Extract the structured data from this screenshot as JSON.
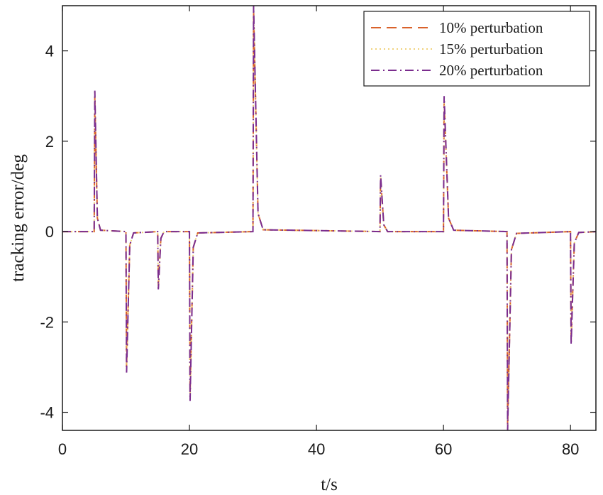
{
  "chart_data": {
    "type": "line",
    "xlabel": "t/s",
    "ylabel": "tracking error/deg",
    "xlim": [
      0,
      84
    ],
    "ylim": [
      -4.4,
      5.0
    ],
    "xticks": [
      0,
      20,
      40,
      60,
      80
    ],
    "yticks": [
      -4,
      -2,
      0,
      2,
      4
    ],
    "xtick_labels": [
      "0",
      "20",
      "40",
      "60",
      "80"
    ],
    "ytick_labels": [
      "-4",
      "-2",
      "0",
      "2",
      "4"
    ],
    "grid": false,
    "legend_position": "top-right",
    "series": [
      {
        "name": "10% perturbation",
        "color": "#d9622b",
        "dash": "dashed",
        "points": [
          [
            0,
            0
          ],
          [
            5,
            0
          ],
          [
            5.1,
            3.0
          ],
          [
            5.5,
            0.3
          ],
          [
            6,
            0.03
          ],
          [
            10,
            0
          ],
          [
            10.1,
            -3.0
          ],
          [
            10.6,
            -0.3
          ],
          [
            11.2,
            -0.03
          ],
          [
            15,
            0
          ],
          [
            15.1,
            -1.2
          ],
          [
            15.5,
            -0.15
          ],
          [
            16,
            0
          ],
          [
            20,
            0
          ],
          [
            20.1,
            -3.6
          ],
          [
            20.6,
            -0.35
          ],
          [
            21.3,
            -0.03
          ],
          [
            30,
            0
          ],
          [
            30.1,
            4.9
          ],
          [
            30.8,
            0.4
          ],
          [
            31.6,
            0.04
          ],
          [
            50,
            0
          ],
          [
            50.1,
            1.2
          ],
          [
            50.6,
            0.15
          ],
          [
            51.2,
            0
          ],
          [
            60,
            0
          ],
          [
            60.1,
            2.9
          ],
          [
            60.8,
            0.3
          ],
          [
            61.6,
            0.03
          ],
          [
            70,
            0
          ],
          [
            70.1,
            -4.3
          ],
          [
            70.7,
            -0.4
          ],
          [
            71.5,
            -0.04
          ],
          [
            80,
            0
          ],
          [
            80.1,
            -2.4
          ],
          [
            80.6,
            -0.25
          ],
          [
            81.3,
            -0.02
          ],
          [
            84,
            0
          ]
        ]
      },
      {
        "name": "15% perturbation",
        "color": "#f0d27a",
        "dash": "dotted",
        "points": [
          [
            0,
            0
          ],
          [
            5,
            0
          ],
          [
            5.1,
            3.08
          ],
          [
            5.5,
            0.3
          ],
          [
            6,
            0.03
          ],
          [
            10,
            0
          ],
          [
            10.1,
            -3.05
          ],
          [
            10.6,
            -0.3
          ],
          [
            11.2,
            -0.03
          ],
          [
            15,
            0
          ],
          [
            15.1,
            -1.25
          ],
          [
            15.5,
            -0.15
          ],
          [
            16,
            0
          ],
          [
            20,
            0
          ],
          [
            20.1,
            -3.65
          ],
          [
            20.6,
            -0.35
          ],
          [
            21.3,
            -0.03
          ],
          [
            30,
            0
          ],
          [
            30.1,
            4.95
          ],
          [
            30.8,
            0.4
          ],
          [
            31.6,
            0.04
          ],
          [
            50,
            0
          ],
          [
            50.1,
            1.22
          ],
          [
            50.6,
            0.15
          ],
          [
            51.2,
            0
          ],
          [
            60,
            0
          ],
          [
            60.1,
            2.95
          ],
          [
            60.8,
            0.3
          ],
          [
            61.6,
            0.03
          ],
          [
            70,
            0
          ],
          [
            70.1,
            -4.35
          ],
          [
            70.7,
            -0.4
          ],
          [
            71.5,
            -0.04
          ],
          [
            80,
            0
          ],
          [
            80.1,
            -2.45
          ],
          [
            80.6,
            -0.25
          ],
          [
            81.3,
            -0.02
          ],
          [
            84,
            0
          ]
        ]
      },
      {
        "name": "20% perturbation",
        "color": "#7b2d8e",
        "dash": "dashdot",
        "points": [
          [
            0,
            0
          ],
          [
            5,
            0
          ],
          [
            5.1,
            3.12
          ],
          [
            5.5,
            0.3
          ],
          [
            6,
            0.03
          ],
          [
            10,
            0
          ],
          [
            10.1,
            -3.12
          ],
          [
            10.6,
            -0.3
          ],
          [
            11.2,
            -0.03
          ],
          [
            15,
            0
          ],
          [
            15.1,
            -1.28
          ],
          [
            15.5,
            -0.15
          ],
          [
            16,
            0
          ],
          [
            20,
            0
          ],
          [
            20.1,
            -3.75
          ],
          [
            20.6,
            -0.35
          ],
          [
            21.3,
            -0.03
          ],
          [
            30,
            0
          ],
          [
            30.1,
            5.0
          ],
          [
            30.8,
            0.4
          ],
          [
            31.6,
            0.04
          ],
          [
            50,
            0
          ],
          [
            50.1,
            1.25
          ],
          [
            50.6,
            0.15
          ],
          [
            51.2,
            0
          ],
          [
            60,
            0
          ],
          [
            60.1,
            3.0
          ],
          [
            60.8,
            0.3
          ],
          [
            61.6,
            0.03
          ],
          [
            70,
            0
          ],
          [
            70.1,
            -4.4
          ],
          [
            70.7,
            -0.4
          ],
          [
            71.5,
            -0.04
          ],
          [
            80,
            0
          ],
          [
            80.1,
            -2.5
          ],
          [
            80.6,
            -0.25
          ],
          [
            81.3,
            -0.02
          ],
          [
            84,
            0
          ]
        ]
      }
    ]
  }
}
